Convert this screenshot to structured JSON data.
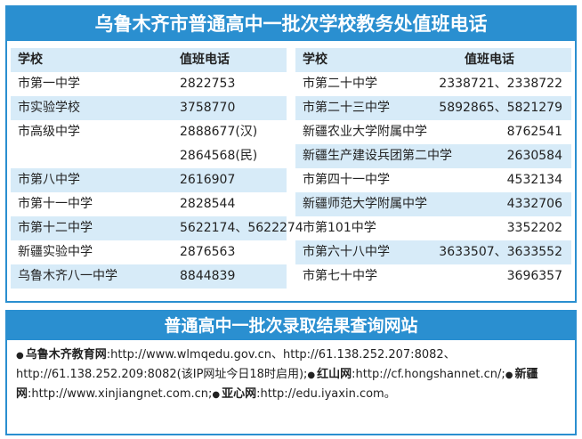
{
  "top": {
    "title": "乌鲁木齐市普通高中一批次学校教务处值班电话",
    "left": {
      "header": [
        "学校",
        "值班电话"
      ],
      "rows": [
        {
          "school": "市第一中学",
          "phone": [
            "2822753"
          ]
        },
        {
          "school": "市实验学校",
          "phone": [
            "3758770"
          ]
        },
        {
          "school": "市高级中学",
          "phone": [
            "2888677(汉)",
            "2864568(民)"
          ]
        },
        {
          "school": "市第八中学",
          "phone": [
            "2616907"
          ]
        },
        {
          "school": "市第十一中学",
          "phone": [
            "2828544"
          ]
        },
        {
          "school": "市第十二中学",
          "phone": [
            "5622174、5622274"
          ]
        },
        {
          "school": "新疆实验中学",
          "phone": [
            "2876563"
          ]
        },
        {
          "school": "乌鲁木齐八一中学",
          "phone": [
            "8844839"
          ]
        }
      ]
    },
    "right": {
      "header": [
        "学校",
        "值班电话"
      ],
      "rows": [
        {
          "school": "市第二十中学",
          "phone": [
            "2338721、2338722"
          ]
        },
        {
          "school": "市第二十三中学",
          "phone": [
            "5892865、5821279"
          ]
        },
        {
          "school": "新疆农业大学附属中学",
          "phone": [
            "8762541"
          ]
        },
        {
          "school": "新疆生产建设兵团第二中学",
          "phone": [
            "2630584"
          ]
        },
        {
          "school": "市第四十一中学",
          "phone": [
            "4532134"
          ]
        },
        {
          "school": "新疆师范大学附属中学",
          "phone": [
            "4332706"
          ]
        },
        {
          "school": "市第101中学",
          "phone": [
            "3352202"
          ]
        },
        {
          "school": "市第六十八中学",
          "phone": [
            "3633507、3633552"
          ]
        },
        {
          "school": "市第七十中学",
          "phone": [
            "3696357"
          ]
        }
      ]
    }
  },
  "bottom": {
    "title": "普通高中一批次录取结果查询网站",
    "sites": [
      {
        "name": "乌鲁木齐教育网",
        "text": ":http://www.wlmqedu.gov.cn、http://61.138.252.207:8082、http://61.138.252.209:8082(该IP网址今日18时启用);"
      },
      {
        "name": "红山网",
        "text": ":http://cf.hongshannet.cn/;"
      },
      {
        "name": "新疆网",
        "text": ":http://www.xinjiangnet.com.cn;"
      },
      {
        "name": "亚心网",
        "text": ":http://edu.iyaxin.com。"
      }
    ]
  }
}
